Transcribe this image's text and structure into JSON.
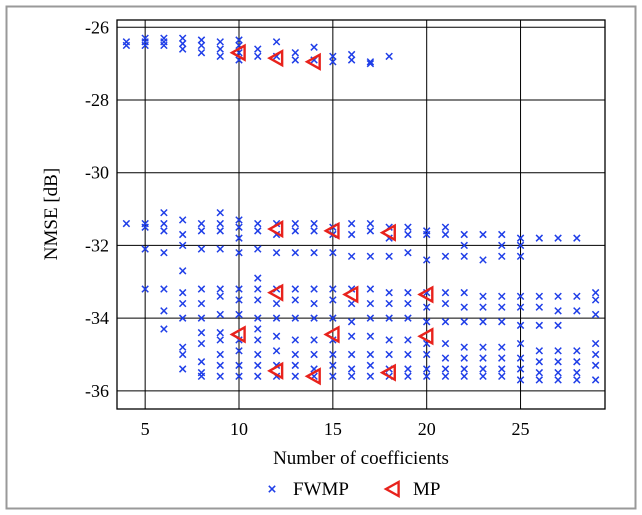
{
  "chart_data": {
    "type": "scatter",
    "xlabel": "Number of coefficients",
    "ylabel": "NMSE [dB]",
    "xlim": [
      3.5,
      29.5
    ],
    "ylim": [
      -36.5,
      -25.8
    ],
    "xticks": [
      5,
      10,
      15,
      20,
      25
    ],
    "yticks": [
      -26,
      -28,
      -30,
      -32,
      -34,
      -36
    ],
    "xtick_labels": [
      "5",
      "10",
      "15",
      "20",
      "25"
    ],
    "ytick_labels": [
      "-26",
      "-28",
      "-30",
      "-32",
      "-34",
      "-36"
    ],
    "grid": true,
    "legend": {
      "placement": "bottom-center"
    },
    "colors": {
      "FWMP": "#1f3ee8",
      "MP": "#e8221c",
      "frame": "#999999"
    },
    "series": [
      {
        "name": "FWMP",
        "marker": "x",
        "points": [
          [
            4,
            -26.4
          ],
          [
            4,
            -26.5
          ],
          [
            5,
            -26.3
          ],
          [
            5,
            -26.4
          ],
          [
            5,
            -26.5
          ],
          [
            6,
            -26.3
          ],
          [
            6,
            -26.4
          ],
          [
            6,
            -26.5
          ],
          [
            7,
            -26.3
          ],
          [
            7,
            -26.45
          ],
          [
            7,
            -26.6
          ],
          [
            8,
            -26.35
          ],
          [
            8,
            -26.5
          ],
          [
            8,
            -26.7
          ],
          [
            9,
            -26.4
          ],
          [
            9,
            -26.6
          ],
          [
            9,
            -26.8
          ],
          [
            10,
            -26.35
          ],
          [
            10,
            -26.5
          ],
          [
            10,
            -26.7
          ],
          [
            10,
            -26.9
          ],
          [
            11,
            -26.6
          ],
          [
            11,
            -26.8
          ],
          [
            12,
            -26.4
          ],
          [
            12,
            -26.8
          ],
          [
            13,
            -26.7
          ],
          [
            13,
            -26.9
          ],
          [
            14,
            -26.55
          ],
          [
            14,
            -26.9
          ],
          [
            15,
            -26.8
          ],
          [
            15,
            -26.95
          ],
          [
            16,
            -26.75
          ],
          [
            16,
            -26.9
          ],
          [
            17,
            -26.95
          ],
          [
            17,
            -27.0
          ],
          [
            18,
            -26.8
          ],
          [
            4,
            -31.4
          ],
          [
            5,
            -31.4
          ],
          [
            5,
            -31.5
          ],
          [
            5,
            -32.1
          ],
          [
            5,
            -33.2
          ],
          [
            6,
            -31.1
          ],
          [
            6,
            -31.4
          ],
          [
            6,
            -31.6
          ],
          [
            6,
            -32.2
          ],
          [
            6,
            -33.2
          ],
          [
            6,
            -33.8
          ],
          [
            6,
            -34.3
          ],
          [
            7,
            -31.3
          ],
          [
            7,
            -31.7
          ],
          [
            7,
            -32.0
          ],
          [
            7,
            -32.7
          ],
          [
            7,
            -33.3
          ],
          [
            7,
            -33.6
          ],
          [
            7,
            -34.0
          ],
          [
            7,
            -34.8
          ],
          [
            7,
            -35.0
          ],
          [
            7,
            -35.4
          ],
          [
            8,
            -31.4
          ],
          [
            8,
            -31.6
          ],
          [
            8,
            -32.1
          ],
          [
            8,
            -33.2
          ],
          [
            8,
            -33.6
          ],
          [
            8,
            -34.0
          ],
          [
            8,
            -34.4
          ],
          [
            8,
            -34.7
          ],
          [
            8,
            -35.2
          ],
          [
            8,
            -35.5
          ],
          [
            8,
            -35.6
          ],
          [
            9,
            -31.1
          ],
          [
            9,
            -31.4
          ],
          [
            9,
            -31.6
          ],
          [
            9,
            -32.1
          ],
          [
            9,
            -33.2
          ],
          [
            9,
            -33.4
          ],
          [
            9,
            -33.9
          ],
          [
            9,
            -34.4
          ],
          [
            9,
            -34.6
          ],
          [
            9,
            -35.0
          ],
          [
            9,
            -35.3
          ],
          [
            9,
            -35.6
          ],
          [
            10,
            -31.3
          ],
          [
            10,
            -31.5
          ],
          [
            10,
            -31.8
          ],
          [
            10,
            -32.2
          ],
          [
            10,
            -33.2
          ],
          [
            10,
            -33.5
          ],
          [
            10,
            -33.9
          ],
          [
            10,
            -34.6
          ],
          [
            10,
            -34.9
          ],
          [
            10,
            -35.3
          ],
          [
            10,
            -35.6
          ],
          [
            11,
            -31.4
          ],
          [
            11,
            -31.6
          ],
          [
            11,
            -32.1
          ],
          [
            11,
            -32.9
          ],
          [
            11,
            -33.2
          ],
          [
            11,
            -33.5
          ],
          [
            11,
            -34.0
          ],
          [
            11,
            -34.3
          ],
          [
            11,
            -34.6
          ],
          [
            11,
            -35.0
          ],
          [
            11,
            -35.3
          ],
          [
            11,
            -35.6
          ],
          [
            12,
            -31.4
          ],
          [
            12,
            -31.7
          ],
          [
            12,
            -32.2
          ],
          [
            12,
            -33.2
          ],
          [
            12,
            -33.6
          ],
          [
            12,
            -34.0
          ],
          [
            12,
            -34.5
          ],
          [
            12,
            -34.9
          ],
          [
            12,
            -35.3
          ],
          [
            12,
            -35.6
          ],
          [
            13,
            -31.4
          ],
          [
            13,
            -31.6
          ],
          [
            13,
            -32.2
          ],
          [
            13,
            -33.2
          ],
          [
            13,
            -33.5
          ],
          [
            13,
            -34.0
          ],
          [
            13,
            -34.6
          ],
          [
            13,
            -35.0
          ],
          [
            13,
            -35.3
          ],
          [
            13,
            -35.6
          ],
          [
            14,
            -31.4
          ],
          [
            14,
            -31.6
          ],
          [
            14,
            -32.2
          ],
          [
            14,
            -33.2
          ],
          [
            14,
            -33.6
          ],
          [
            14,
            -34.0
          ],
          [
            14,
            -34.6
          ],
          [
            14,
            -35.0
          ],
          [
            14,
            -35.4
          ],
          [
            14,
            -35.6
          ],
          [
            15,
            -31.5
          ],
          [
            15,
            -31.7
          ],
          [
            15,
            -32.2
          ],
          [
            15,
            -33.2
          ],
          [
            15,
            -33.5
          ],
          [
            15,
            -34.0
          ],
          [
            15,
            -34.6
          ],
          [
            15,
            -35.0
          ],
          [
            15,
            -35.3
          ],
          [
            15,
            -35.6
          ],
          [
            16,
            -31.4
          ],
          [
            16,
            -31.7
          ],
          [
            16,
            -32.3
          ],
          [
            16,
            -33.2
          ],
          [
            16,
            -33.6
          ],
          [
            16,
            -34.1
          ],
          [
            16,
            -34.5
          ],
          [
            16,
            -35.0
          ],
          [
            16,
            -35.4
          ],
          [
            16,
            -35.6
          ],
          [
            17,
            -31.4
          ],
          [
            17,
            -31.6
          ],
          [
            17,
            -32.3
          ],
          [
            17,
            -33.2
          ],
          [
            17,
            -33.6
          ],
          [
            17,
            -34.0
          ],
          [
            17,
            -34.5
          ],
          [
            17,
            -35.0
          ],
          [
            17,
            -35.3
          ],
          [
            17,
            -35.6
          ],
          [
            18,
            -31.5
          ],
          [
            18,
            -31.8
          ],
          [
            18,
            -32.3
          ],
          [
            18,
            -33.3
          ],
          [
            18,
            -33.6
          ],
          [
            18,
            -34.0
          ],
          [
            18,
            -34.6
          ],
          [
            18,
            -35.0
          ],
          [
            18,
            -35.4
          ],
          [
            18,
            -35.6
          ],
          [
            19,
            -31.5
          ],
          [
            19,
            -31.7
          ],
          [
            19,
            -32.2
          ],
          [
            19,
            -33.3
          ],
          [
            19,
            -33.6
          ],
          [
            19,
            -34.0
          ],
          [
            19,
            -34.6
          ],
          [
            19,
            -35.0
          ],
          [
            19,
            -35.4
          ],
          [
            19,
            -35.6
          ],
          [
            20,
            -31.6
          ],
          [
            20,
            -31.7
          ],
          [
            20,
            -32.4
          ],
          [
            20,
            -33.3
          ],
          [
            20,
            -33.7
          ],
          [
            20,
            -34.1
          ],
          [
            20,
            -34.7
          ],
          [
            20,
            -35.0
          ],
          [
            20,
            -35.4
          ],
          [
            20,
            -35.6
          ],
          [
            21,
            -31.5
          ],
          [
            21,
            -31.7
          ],
          [
            21,
            -32.3
          ],
          [
            21,
            -33.3
          ],
          [
            21,
            -33.6
          ],
          [
            21,
            -34.1
          ],
          [
            21,
            -34.7
          ],
          [
            21,
            -35.1
          ],
          [
            21,
            -35.4
          ],
          [
            21,
            -35.6
          ],
          [
            22,
            -31.7
          ],
          [
            22,
            -32.0
          ],
          [
            22,
            -32.3
          ],
          [
            22,
            -33.3
          ],
          [
            22,
            -33.7
          ],
          [
            22,
            -34.1
          ],
          [
            22,
            -34.8
          ],
          [
            22,
            -35.1
          ],
          [
            22,
            -35.4
          ],
          [
            22,
            -35.6
          ],
          [
            23,
            -31.7
          ],
          [
            23,
            -32.4
          ],
          [
            23,
            -33.4
          ],
          [
            23,
            -33.7
          ],
          [
            23,
            -34.1
          ],
          [
            23,
            -34.8
          ],
          [
            23,
            -35.1
          ],
          [
            23,
            -35.4
          ],
          [
            23,
            -35.6
          ],
          [
            24,
            -31.7
          ],
          [
            24,
            -32.0
          ],
          [
            24,
            -32.3
          ],
          [
            24,
            -33.4
          ],
          [
            24,
            -33.7
          ],
          [
            24,
            -34.1
          ],
          [
            24,
            -34.8
          ],
          [
            24,
            -35.1
          ],
          [
            24,
            -35.4
          ],
          [
            24,
            -35.6
          ],
          [
            25,
            -31.8
          ],
          [
            25,
            -32.0
          ],
          [
            25,
            -32.3
          ],
          [
            25,
            -33.4
          ],
          [
            25,
            -33.7
          ],
          [
            25,
            -34.2
          ],
          [
            25,
            -34.7
          ],
          [
            25,
            -35.1
          ],
          [
            25,
            -35.4
          ],
          [
            25,
            -35.7
          ],
          [
            26,
            -31.8
          ],
          [
            26,
            -33.4
          ],
          [
            26,
            -33.7
          ],
          [
            26,
            -34.2
          ],
          [
            26,
            -34.9
          ],
          [
            26,
            -35.2
          ],
          [
            26,
            -35.5
          ],
          [
            26,
            -35.7
          ],
          [
            27,
            -31.8
          ],
          [
            27,
            -33.4
          ],
          [
            27,
            -33.8
          ],
          [
            27,
            -34.2
          ],
          [
            27,
            -34.9
          ],
          [
            27,
            -35.2
          ],
          [
            27,
            -35.5
          ],
          [
            27,
            -35.7
          ],
          [
            28,
            -31.8
          ],
          [
            28,
            -33.4
          ],
          [
            28,
            -33.8
          ],
          [
            28,
            -34.9
          ],
          [
            28,
            -35.2
          ],
          [
            28,
            -35.5
          ],
          [
            28,
            -35.7
          ],
          [
            29,
            -33.3
          ],
          [
            29,
            -33.5
          ],
          [
            29,
            -33.9
          ],
          [
            29,
            -34.7
          ],
          [
            29,
            -35.0
          ],
          [
            29,
            -35.3
          ],
          [
            29,
            -35.7
          ]
        ]
      },
      {
        "name": "MP",
        "marker": "triangle-left",
        "points": [
          [
            10,
            -26.7
          ],
          [
            12,
            -26.85
          ],
          [
            14,
            -26.95
          ],
          [
            12,
            -31.55
          ],
          [
            15,
            -31.6
          ],
          [
            18,
            -31.65
          ],
          [
            12,
            -33.3
          ],
          [
            16,
            -33.35
          ],
          [
            20,
            -33.35
          ],
          [
            10,
            -34.45
          ],
          [
            15,
            -34.45
          ],
          [
            20,
            -34.5
          ],
          [
            12,
            -35.45
          ],
          [
            14,
            -35.6
          ],
          [
            18,
            -35.5
          ]
        ]
      }
    ]
  }
}
